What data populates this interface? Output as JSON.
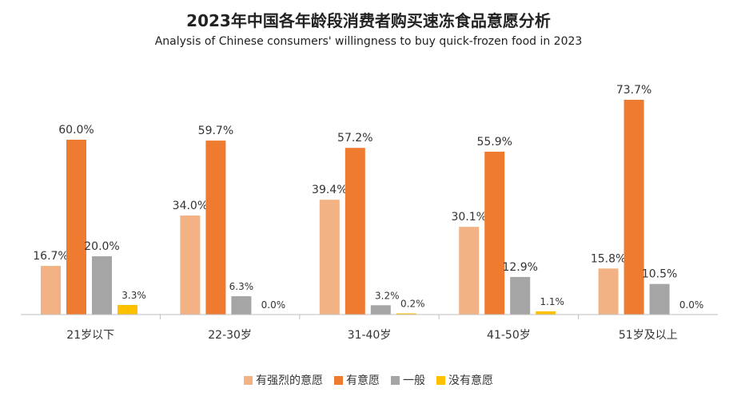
{
  "chart_data": {
    "type": "bar",
    "title": "2023年中国各年龄段消费者购买速冻食品意愿分析",
    "subtitle": "Analysis of Chinese consumers' willingness to buy quick-frozen food in 2023",
    "categories": [
      "21岁以下",
      "22-30岁",
      "31-40岁",
      "41-50岁",
      "51岁及以上"
    ],
    "series": [
      {
        "name": "有强烈的意愿",
        "color": "#F2B283",
        "values": [
          16.7,
          34.0,
          39.4,
          30.1,
          15.8
        ],
        "labels": [
          "16.7%",
          "34.0%",
          "39.4%",
          "30.1%",
          "15.8%"
        ]
      },
      {
        "name": "有意愿",
        "color": "#EE7B30",
        "values": [
          60.0,
          59.7,
          57.2,
          55.9,
          73.7
        ],
        "labels": [
          "60.0%",
          "59.7%",
          "57.2%",
          "55.9%",
          "73.7%"
        ]
      },
      {
        "name": "一般",
        "color": "#A5A5A5",
        "values": [
          20.0,
          6.3,
          3.2,
          12.9,
          10.5
        ],
        "labels": [
          "20.0%",
          "6.3%",
          "3.2%",
          "12.9%",
          "10.5%"
        ]
      },
      {
        "name": "没有意愿",
        "color": "#FFC000",
        "values": [
          3.3,
          0.0,
          0.2,
          1.1,
          0.0
        ],
        "labels": [
          "3.3%",
          "0.0%",
          "0.2%",
          "1.1%",
          "0.0%"
        ]
      }
    ],
    "ylim": [
      0,
      80
    ],
    "legend_position": "bottom",
    "grid": false
  }
}
